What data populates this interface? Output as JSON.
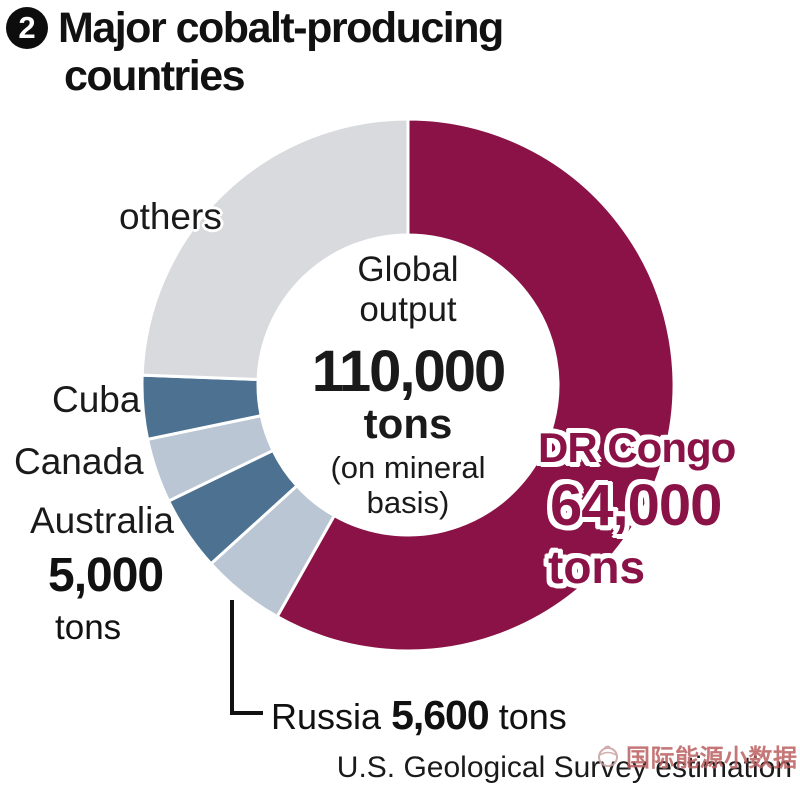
{
  "title": {
    "badge": "2",
    "line1": "Major cobalt-producing",
    "line2": "countries"
  },
  "words": {
    "tons": "tons"
  },
  "chart_data": {
    "type": "pie",
    "subtype": "donut",
    "unit": "tons",
    "direction": "clockwise",
    "start_angle_deg": 0,
    "center": [
      408,
      385
    ],
    "outer_radius": 266,
    "inner_radius": 150,
    "total": {
      "line1": "Global",
      "line2": "output",
      "value": "110,000",
      "unit": "tons",
      "note": "(on mineral basis)"
    },
    "segments": [
      {
        "name": "DR Congo",
        "value_tons": 64000,
        "display_value": "64,000",
        "color": "#8a1246",
        "value_labeled": true
      },
      {
        "name": "Russia",
        "value_tons": 5600,
        "display_value": "5,600",
        "color": "#bac6d3",
        "value_labeled": true
      },
      {
        "name": "Australia",
        "value_tons": 5000,
        "display_value": "5,000",
        "color": "#4d7190",
        "value_labeled": true
      },
      {
        "name": "Canada",
        "value_tons": 4300,
        "display_value": "",
        "color": "#bac6d3",
        "value_labeled": false
      },
      {
        "name": "Cuba",
        "value_tons": 4250,
        "display_value": "",
        "color": "#4d7190",
        "value_labeled": false
      },
      {
        "name": "others",
        "value_tons": 26850,
        "display_value": "",
        "color": "#d8dadd",
        "value_labeled": false
      }
    ]
  },
  "source": "U.S. Geological Survey estimation",
  "watermark": {
    "text": "国际能源小数据"
  }
}
